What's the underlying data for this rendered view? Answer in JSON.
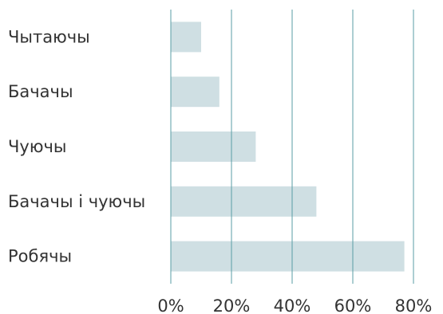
{
  "chart_data": {
    "type": "bar",
    "orientation": "horizontal",
    "categories": [
      "Чытаючы",
      "Бачачы",
      "Чуючы",
      "Бачачы і чуючы",
      "Робячы"
    ],
    "values": [
      10,
      16,
      28,
      48,
      77
    ],
    "xlim": [
      0,
      80
    ],
    "x_ticks": [
      0,
      20,
      40,
      60,
      80
    ],
    "x_tick_labels": [
      "0%",
      "20%",
      "40%",
      "60%",
      "80%"
    ],
    "title": "",
    "xlabel": "",
    "ylabel": "",
    "grid": "vertical",
    "legend": "none",
    "colors": {
      "bar": "#cfdfe3",
      "grid": "#5a9ea4"
    }
  }
}
